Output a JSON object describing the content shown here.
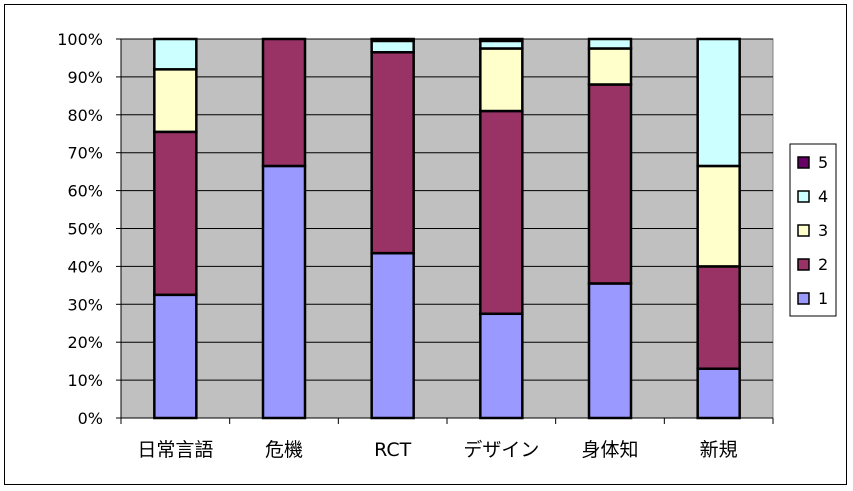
{
  "chart_data": {
    "type": "bar",
    "stacked": true,
    "percent": true,
    "categories": [
      "日常言語",
      "危機",
      "RCT",
      "デザイン",
      "身体知",
      "新規"
    ],
    "yticks": [
      "0%",
      "10%",
      "20%",
      "30%",
      "40%",
      "50%",
      "60%",
      "70%",
      "80%",
      "90%",
      "100%"
    ],
    "ylim": [
      0,
      100
    ],
    "grid": true,
    "legend_position": "right",
    "series": [
      {
        "name": "1",
        "color": "#9999ff",
        "values": [
          32.5,
          66.5,
          43.5,
          27.5,
          35.5,
          13.0
        ]
      },
      {
        "name": "2",
        "color": "#993366",
        "values": [
          43.0,
          33.5,
          53.0,
          53.5,
          52.5,
          27.0
        ]
      },
      {
        "name": "3",
        "color": "#ffffcc",
        "values": [
          16.5,
          0.0,
          0.0,
          16.5,
          9.5,
          26.5
        ]
      },
      {
        "name": "4",
        "color": "#ccffff",
        "values": [
          8.0,
          0.0,
          3.0,
          2.0,
          2.5,
          33.5
        ]
      },
      {
        "name": "5",
        "color": "#660066",
        "values": [
          0.0,
          0.0,
          0.5,
          0.5,
          0.0,
          0.0
        ]
      }
    ],
    "plot_background": "#c0c0c0"
  }
}
